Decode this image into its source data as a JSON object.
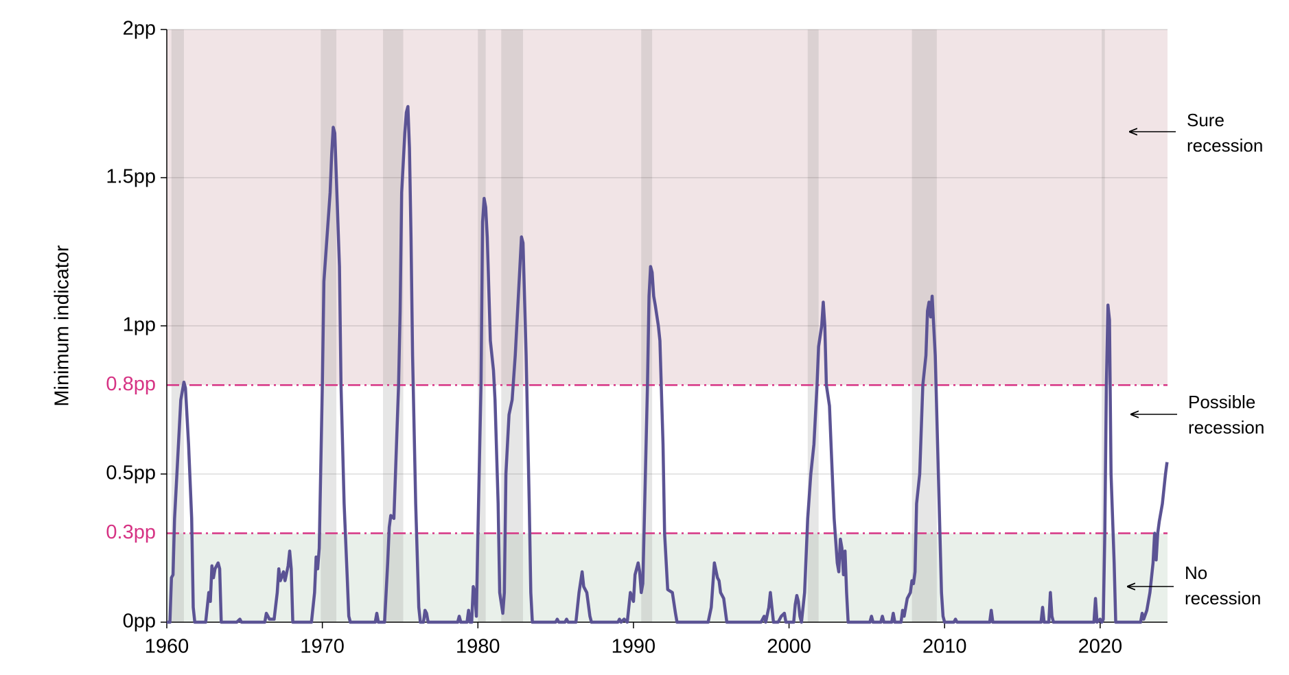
{
  "chart_data": {
    "type": "line",
    "y_label": "Minimum indicator",
    "color": "#5b5394",
    "xlim": [
      1960,
      2024.33
    ],
    "xticks": [
      1960,
      1970,
      1980,
      1990,
      2000,
      2010,
      2020
    ],
    "ylim": [
      0,
      2
    ],
    "yticks": [
      {
        "value": 0,
        "label": "0pp"
      },
      {
        "value": 0.5,
        "label": "0.5pp"
      },
      {
        "value": 1,
        "label": "1pp"
      },
      {
        "value": 1.5,
        "label": "1.5pp"
      },
      {
        "value": 2,
        "label": "2pp"
      }
    ],
    "grid": true,
    "thresholds": [
      {
        "value": 0.3,
        "label": "0.3pp"
      },
      {
        "value": 0.8,
        "label": "0.8pp"
      }
    ],
    "threshold_color": "#d63384",
    "zone_colors": [
      "#e9f0ea",
      "#ffffff",
      "#f1e4e6"
    ],
    "recessions": [
      [
        1960.3,
        1961.1
      ],
      [
        1969.9,
        1970.9
      ],
      [
        1973.9,
        1975.2
      ],
      [
        1980.0,
        1980.5
      ],
      [
        1981.5,
        1982.9
      ],
      [
        1990.5,
        1991.2
      ],
      [
        2001.2,
        2001.9
      ],
      [
        2007.9,
        2009.5
      ],
      [
        2020.1,
        2020.3
      ]
    ],
    "annotations": [
      "Sure recession",
      "Possible recession",
      "No recession"
    ],
    "x": [
      1960.0,
      1960.2,
      1960.3,
      1960.4,
      1960.5,
      1960.7,
      1960.9,
      1961.1,
      1961.2,
      1961.4,
      1961.6,
      1961.7,
      1961.8,
      1962.5,
      1962.7,
      1962.8,
      1962.9,
      1963.0,
      1963.1,
      1963.3,
      1963.4,
      1963.5,
      1964.5,
      1964.7,
      1964.8,
      1966.3,
      1966.4,
      1966.6,
      1966.9,
      1967.1,
      1967.2,
      1967.3,
      1967.5,
      1967.6,
      1967.8,
      1967.9,
      1968.0,
      1968.1,
      1969.3,
      1969.5,
      1969.6,
      1969.7,
      1969.8,
      1970.0,
      1970.1,
      1970.3,
      1970.5,
      1970.6,
      1970.7,
      1970.8,
      1970.9,
      1971.1,
      1971.2,
      1971.4,
      1971.6,
      1971.7,
      1971.8,
      1973.4,
      1973.5,
      1973.6,
      1974.0,
      1974.2,
      1974.3,
      1974.4,
      1974.6,
      1974.7,
      1974.9,
      1975.0,
      1975.1,
      1975.3,
      1975.4,
      1975.5,
      1975.6,
      1975.7,
      1975.8,
      1976.0,
      1976.2,
      1976.3,
      1976.5,
      1976.6,
      1976.7,
      1976.8,
      1978.7,
      1978.8,
      1978.9,
      1979.3,
      1979.4,
      1979.5,
      1979.6,
      1979.7,
      1979.8,
      1979.9,
      1980.0,
      1980.2,
      1980.3,
      1980.4,
      1980.5,
      1980.6,
      1980.8,
      1981.0,
      1981.1,
      1981.3,
      1981.4,
      1981.6,
      1981.7,
      1981.8,
      1982.0,
      1982.2,
      1982.4,
      1982.6,
      1982.8,
      1982.9,
      1983.1,
      1983.3,
      1983.4,
      1983.5,
      1985.0,
      1985.1,
      1985.2,
      1985.6,
      1985.7,
      1985.8,
      1986.3,
      1986.5,
      1986.7,
      1986.8,
      1987.0,
      1987.1,
      1987.2,
      1987.3,
      1989.0,
      1989.1,
      1989.2,
      1989.4,
      1989.6,
      1989.8,
      1990.0,
      1990.1,
      1990.3,
      1990.4,
      1990.5,
      1990.6,
      1990.7,
      1990.9,
      1991.0,
      1991.1,
      1991.2,
      1991.3,
      1991.4,
      1991.6,
      1991.7,
      1991.9,
      1992.0,
      1992.2,
      1992.5,
      1992.7,
      1992.8,
      1994.8,
      1995.0,
      1995.2,
      1995.4,
      1995.5,
      1995.6,
      1995.8,
      1996.0,
      1998.2,
      1998.4,
      1998.5,
      1998.7,
      1998.8,
      1998.9,
      1999.0,
      1999.3,
      1999.5,
      1999.7,
      1999.8,
      2000.3,
      2000.4,
      2000.5,
      2000.6,
      2000.7,
      2000.8,
      2001.0,
      2001.2,
      2001.4,
      2001.6,
      2001.8,
      2001.9,
      2002.1,
      2002.2,
      2002.3,
      2002.4,
      2002.6,
      2002.7,
      2002.9,
      2003.1,
      2003.2,
      2003.3,
      2003.4,
      2003.5,
      2003.6,
      2003.7,
      2003.8,
      2005.2,
      2005.3,
      2005.4,
      2005.9,
      2006.0,
      2006.1,
      2006.6,
      2006.7,
      2006.8,
      2007.2,
      2007.3,
      2007.4,
      2007.6,
      2007.8,
      2007.9,
      2008.0,
      2008.1,
      2008.2,
      2008.4,
      2008.6,
      2008.8,
      2008.9,
      2009.0,
      2009.1,
      2009.2,
      2009.4,
      2009.6,
      2009.7,
      2009.8,
      2009.9,
      2010.0,
      2010.6,
      2010.7,
      2010.8,
      2012.9,
      2013.0,
      2013.1,
      2016.2,
      2016.3,
      2016.4,
      2016.7,
      2016.8,
      2016.9,
      2017.0,
      2019.6,
      2019.7,
      2019.8,
      2020.0,
      2020.1,
      2020.2,
      2020.3,
      2020.4,
      2020.5,
      2020.6,
      2020.7,
      2020.8,
      2020.9,
      2021.0,
      2022.6,
      2022.7,
      2022.8,
      2023.0,
      2023.2,
      2023.4,
      2023.5,
      2023.6,
      2023.7,
      2023.8,
      2024.0,
      2024.2,
      2024.3
    ],
    "values": [
      0,
      0,
      0.15,
      0.16,
      0.35,
      0.55,
      0.75,
      0.81,
      0.79,
      0.6,
      0.35,
      0.05,
      0,
      0,
      0.1,
      0.07,
      0.19,
      0.15,
      0.18,
      0.2,
      0.18,
      0,
      0,
      0.01,
      0,
      0,
      0.03,
      0.01,
      0.01,
      0.1,
      0.18,
      0.14,
      0.17,
      0.14,
      0.19,
      0.24,
      0.18,
      0,
      0,
      0.1,
      0.22,
      0.18,
      0.25,
      0.8,
      1.15,
      1.3,
      1.45,
      1.58,
      1.67,
      1.65,
      1.5,
      1.2,
      0.8,
      0.4,
      0.15,
      0.02,
      0,
      0,
      0.03,
      0,
      0,
      0.2,
      0.32,
      0.36,
      0.35,
      0.5,
      0.8,
      1.05,
      1.45,
      1.65,
      1.72,
      1.74,
      1.6,
      1.3,
      0.9,
      0.4,
      0.05,
      0,
      0,
      0.04,
      0.03,
      0,
      0,
      0.02,
      0,
      0,
      0.04,
      0,
      0,
      0.12,
      0.1,
      0.02,
      0.3,
      0.8,
      1.35,
      1.43,
      1.4,
      1.3,
      0.95,
      0.85,
      0.75,
      0.4,
      0.1,
      0.03,
      0.1,
      0.5,
      0.7,
      0.75,
      0.9,
      1.1,
      1.3,
      1.28,
      0.9,
      0.4,
      0.1,
      0,
      0,
      0.01,
      0,
      0,
      0.01,
      0,
      0,
      0.1,
      0.17,
      0.12,
      0.1,
      0.06,
      0.02,
      0,
      0,
      0.01,
      0,
      0.01,
      0,
      0.1,
      0.07,
      0.16,
      0.2,
      0.17,
      0.1,
      0.13,
      0.35,
      0.8,
      1.1,
      1.2,
      1.18,
      1.1,
      1.07,
      1.0,
      0.95,
      0.6,
      0.3,
      0.11,
      0.1,
      0.03,
      0,
      0,
      0.05,
      0.2,
      0.15,
      0.14,
      0.1,
      0.08,
      0,
      0,
      0.02,
      0,
      0.05,
      0.1,
      0.05,
      0,
      0,
      0.02,
      0.03,
      0,
      0,
      0.06,
      0.09,
      0.07,
      0.02,
      0,
      0.1,
      0.35,
      0.5,
      0.6,
      0.8,
      0.93,
      1.0,
      1.08,
      1.0,
      0.8,
      0.73,
      0.6,
      0.35,
      0.2,
      0.17,
      0.28,
      0.25,
      0.16,
      0.24,
      0.1,
      0,
      0,
      0.02,
      0,
      0,
      0.02,
      0,
      0,
      0.03,
      0,
      0,
      0.04,
      0.02,
      0.08,
      0.1,
      0.14,
      0.13,
      0.17,
      0.4,
      0.5,
      0.8,
      0.9,
      1.05,
      1.08,
      1.03,
      1.1,
      0.9,
      0.5,
      0.3,
      0.1,
      0.02,
      0,
      0,
      0.01,
      0,
      0,
      0.04,
      0,
      0,
      0.05,
      0,
      0,
      0.1,
      0.02,
      0,
      0,
      0.08,
      0,
      0.01,
      0,
      0.01,
      0.3,
      0.8,
      1.07,
      1.02,
      0.5,
      0.35,
      0.2,
      0,
      0,
      0.03,
      0.01,
      0.04,
      0.1,
      0.2,
      0.3,
      0.21,
      0.3,
      0.34,
      0.4,
      0.5,
      0.54
    ]
  }
}
